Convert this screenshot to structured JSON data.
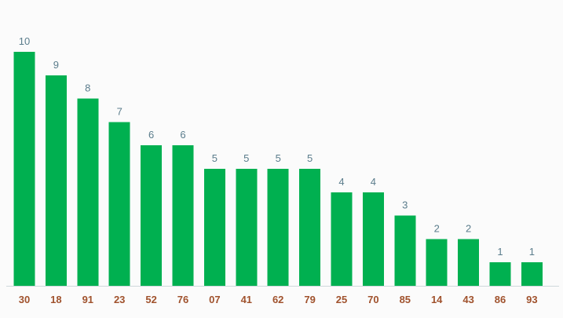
{
  "chart_data": {
    "type": "bar",
    "categories": [
      "30",
      "18",
      "91",
      "23",
      "52",
      "76",
      "07",
      "41",
      "62",
      "79",
      "25",
      "70",
      "85",
      "14",
      "43",
      "86",
      "93"
    ],
    "values": [
      10,
      9,
      8,
      7,
      6,
      6,
      5,
      5,
      5,
      5,
      4,
      4,
      3,
      2,
      2,
      1,
      1
    ],
    "ylim": [
      0,
      10
    ],
    "grid": false,
    "legend": "none"
  },
  "colors": {
    "bar": "#00b050",
    "value_label": "#5b7d8c",
    "category_label": "#a0522d",
    "axis": "#cfd8dc"
  }
}
